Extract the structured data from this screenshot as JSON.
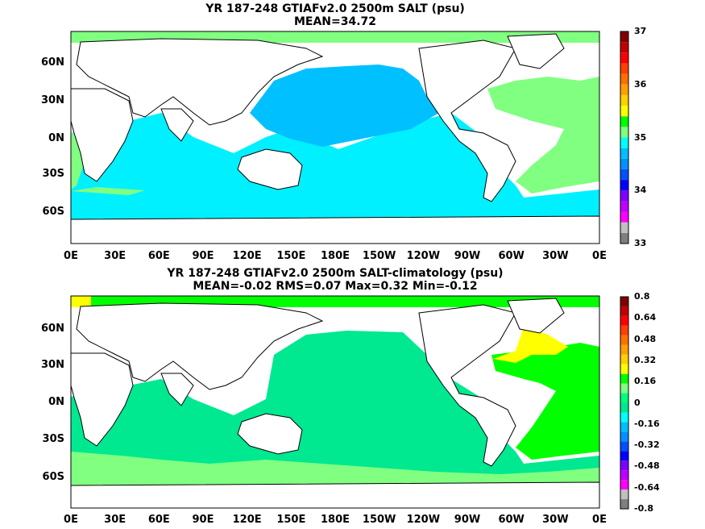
{
  "panels": [
    {
      "title_line1": "YR 187-248 GTIAFv2.0 2500m SALT (psu)",
      "title_line2": "MEAN=34.72",
      "y_labels": [
        "60N",
        "30N",
        "0N",
        "30S",
        "60S"
      ],
      "x_labels": [
        "0E",
        "30E",
        "60E",
        "90E",
        "120E",
        "150E",
        "180E",
        "150W",
        "120W",
        "90W",
        "60W",
        "30W",
        "0E"
      ],
      "colorbar_labels": [
        "37",
        "36",
        "35",
        "34",
        "33"
      ],
      "colorbar_colors": [
        "#7f7f7f",
        "#bfbfbf",
        "#ff00ff",
        "#bf00ff",
        "#7f00ff",
        "#0000ff",
        "#0050ff",
        "#0090ff",
        "#00bfff",
        "#00ffff",
        "#7fff7f",
        "#00ff00",
        "#ffff00",
        "#ffd000",
        "#ffa000",
        "#ff7000",
        "#ff4000",
        "#ff0000",
        "#c00000",
        "#800000"
      ]
    },
    {
      "title_line1": "YR 187-248 GTIAFv2.0 2500m SALT-climatology (psu)",
      "title_line2": "MEAN=-0.02   RMS=0.07   Max=0.32   Min=-0.12",
      "y_labels": [
        "60N",
        "30N",
        "0N",
        "30S",
        "60S"
      ],
      "x_labels": [
        "0E",
        "30E",
        "60E",
        "90E",
        "120E",
        "150E",
        "180E",
        "150W",
        "120W",
        "90W",
        "60W",
        "30W",
        "0E"
      ],
      "colorbar_labels": [
        "0.8",
        "0.64",
        "0.48",
        "0.32",
        "0.16",
        "0",
        "-0.16",
        "-0.32",
        "-0.48",
        "-0.64",
        "-0.8"
      ],
      "colorbar_colors": [
        "#7f7f7f",
        "#bfbfbf",
        "#ff00ff",
        "#bf00ff",
        "#7f00ff",
        "#0000ff",
        "#0050ff",
        "#0090ff",
        "#00bfff",
        "#00ffff",
        "#00e890",
        "#00ff7f",
        "#7fff7f",
        "#00ff00",
        "#ffff00",
        "#ffd000",
        "#ffa000",
        "#ff7000",
        "#ff4000",
        "#ff0000",
        "#c00000",
        "#800000"
      ]
    }
  ],
  "colors": {
    "land": "#ffffff",
    "panel1_ocean": "#00f0ff",
    "panel1_pacific": "#00c0ff",
    "panel1_atlantic": "#80ff80",
    "panel2_ocean": "#00e890",
    "panel2_south": "#80ff80",
    "panel2_atlantic": "#00ff00",
    "panel2_yellow": "#ffff00"
  }
}
